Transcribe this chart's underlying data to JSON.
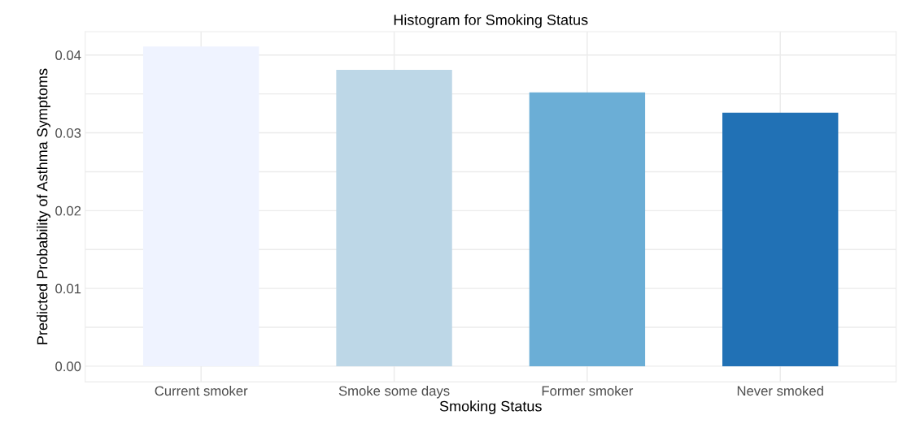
{
  "chart_data": {
    "type": "bar",
    "title": "Histogram for Smoking Status",
    "xlabel": "Smoking Status",
    "ylabel": "Predicted Probability of Asthma Symptoms",
    "categories": [
      "Current smoker",
      "Smoke some days",
      "Former smoker",
      "Never smoked"
    ],
    "values": [
      0.0411,
      0.0381,
      0.0352,
      0.0326
    ],
    "colors": [
      "#eff3ff",
      "#bdd7e7",
      "#6baed6",
      "#2171b5"
    ],
    "ylim": [
      -0.002,
      0.043
    ],
    "yticks": [
      {
        "value": 0,
        "label": "0.00"
      },
      {
        "value": 0.005,
        "label": null
      },
      {
        "value": 0.01,
        "label": "0.01"
      },
      {
        "value": 0.015,
        "label": null
      },
      {
        "value": 0.02,
        "label": "0.02"
      },
      {
        "value": 0.025,
        "label": null
      },
      {
        "value": 0.03,
        "label": "0.03"
      },
      {
        "value": 0.035,
        "label": null
      },
      {
        "value": 0.04,
        "label": "0.04"
      }
    ],
    "grid": true,
    "legend": false
  }
}
